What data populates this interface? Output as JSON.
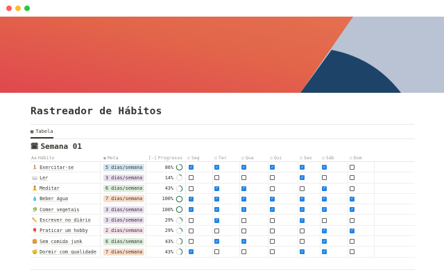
{
  "window": {
    "controls": [
      {
        "name": "close",
        "color": "#ff5f57"
      },
      {
        "name": "minimize",
        "color": "#febc2e"
      },
      {
        "name": "maximize",
        "color": "#28c840"
      }
    ]
  },
  "title": "Rastreador de Hábitos",
  "tab": {
    "label": "Tabela",
    "icon": "table-icon"
  },
  "group": {
    "label": "Semana 01",
    "icon": "calendar-icon"
  },
  "columns": {
    "habit": "Hábito",
    "goal": "Meta",
    "progress": "Progresso",
    "days": [
      "Seg",
      "Ter",
      "Qua",
      "Qui",
      "Sex",
      "Sáb",
      "Dom"
    ]
  },
  "tag_colors": {
    "blue": "#d3e5ef",
    "purple": "#e8deee",
    "green": "#dbeddb",
    "orange": "#fadec9",
    "pink": "#f5e0e9"
  },
  "rows": [
    {
      "emoji": "🏃",
      "habit": "Exercitar-se",
      "goal": "5 dias/semana",
      "goal_color": "blue",
      "progress": "86%",
      "progress_value": 0.86,
      "checks": [
        true,
        true,
        true,
        true,
        true,
        true,
        false
      ]
    },
    {
      "emoji": "📖",
      "habit": "Ler",
      "goal": "3 dias/semana",
      "goal_color": "purple",
      "progress": "14%",
      "progress_value": 0.14,
      "checks": [
        false,
        false,
        false,
        false,
        true,
        false,
        false
      ]
    },
    {
      "emoji": "🧘",
      "habit": "Meditar",
      "goal": "6 dias/semana",
      "goal_color": "green",
      "progress": "43%",
      "progress_value": 0.43,
      "checks": [
        false,
        true,
        true,
        false,
        false,
        true,
        false
      ]
    },
    {
      "emoji": "💧",
      "habit": "Beber água",
      "goal": "7 dias/semana",
      "goal_color": "orange",
      "progress": "100%",
      "progress_value": 1,
      "checks": [
        true,
        true,
        true,
        true,
        true,
        true,
        true
      ]
    },
    {
      "emoji": "🥬",
      "habit": "Comer vegetais",
      "goal": "3 dias/semana",
      "goal_color": "purple",
      "progress": "100%",
      "progress_value": 1,
      "checks": [
        true,
        true,
        true,
        true,
        true,
        true,
        true
      ]
    },
    {
      "emoji": "✏️",
      "habit": "Escrever no diário",
      "goal": "3 dias/semana",
      "goal_color": "purple",
      "progress": "29%",
      "progress_value": 0.29,
      "checks": [
        false,
        true,
        false,
        false,
        true,
        false,
        false
      ]
    },
    {
      "emoji": "🎈",
      "habit": "Praticar um hobby",
      "goal": "2 dias/semana",
      "goal_color": "pink",
      "progress": "29%",
      "progress_value": 0.29,
      "checks": [
        false,
        false,
        false,
        false,
        false,
        true,
        true
      ]
    },
    {
      "emoji": "🍔",
      "habit": "Sem comida junk",
      "goal": "6 dias/semana",
      "goal_color": "green",
      "progress": "43%",
      "progress_value": 0.43,
      "checks": [
        false,
        true,
        true,
        false,
        false,
        true,
        false
      ]
    },
    {
      "emoji": "😴",
      "habit": "Dormir com qualidade",
      "goal": "7 dias/semana",
      "goal_color": "orange",
      "progress": "43%",
      "progress_value": 0.43,
      "checks": [
        true,
        false,
        false,
        false,
        true,
        true,
        false
      ]
    }
  ]
}
